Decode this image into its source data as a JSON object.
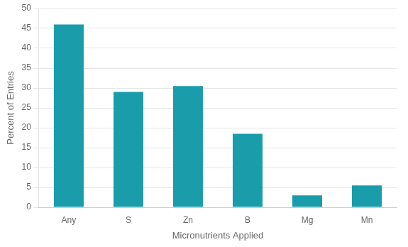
{
  "chart_data": {
    "type": "bar",
    "categories": [
      "Any",
      "S",
      "Zn",
      "B",
      "Mg",
      "Mn"
    ],
    "values": [
      46.0,
      29.0,
      30.5,
      18.5,
      3.0,
      5.5
    ],
    "color": "#1a9daa",
    "xlabel": "Micronutrients Applied",
    "ylabel": "Percent of Entries",
    "ylim": [
      0,
      50
    ],
    "yticks": [
      0,
      5,
      10,
      15,
      20,
      25,
      30,
      35,
      40,
      45,
      50
    ],
    "grid": true
  }
}
